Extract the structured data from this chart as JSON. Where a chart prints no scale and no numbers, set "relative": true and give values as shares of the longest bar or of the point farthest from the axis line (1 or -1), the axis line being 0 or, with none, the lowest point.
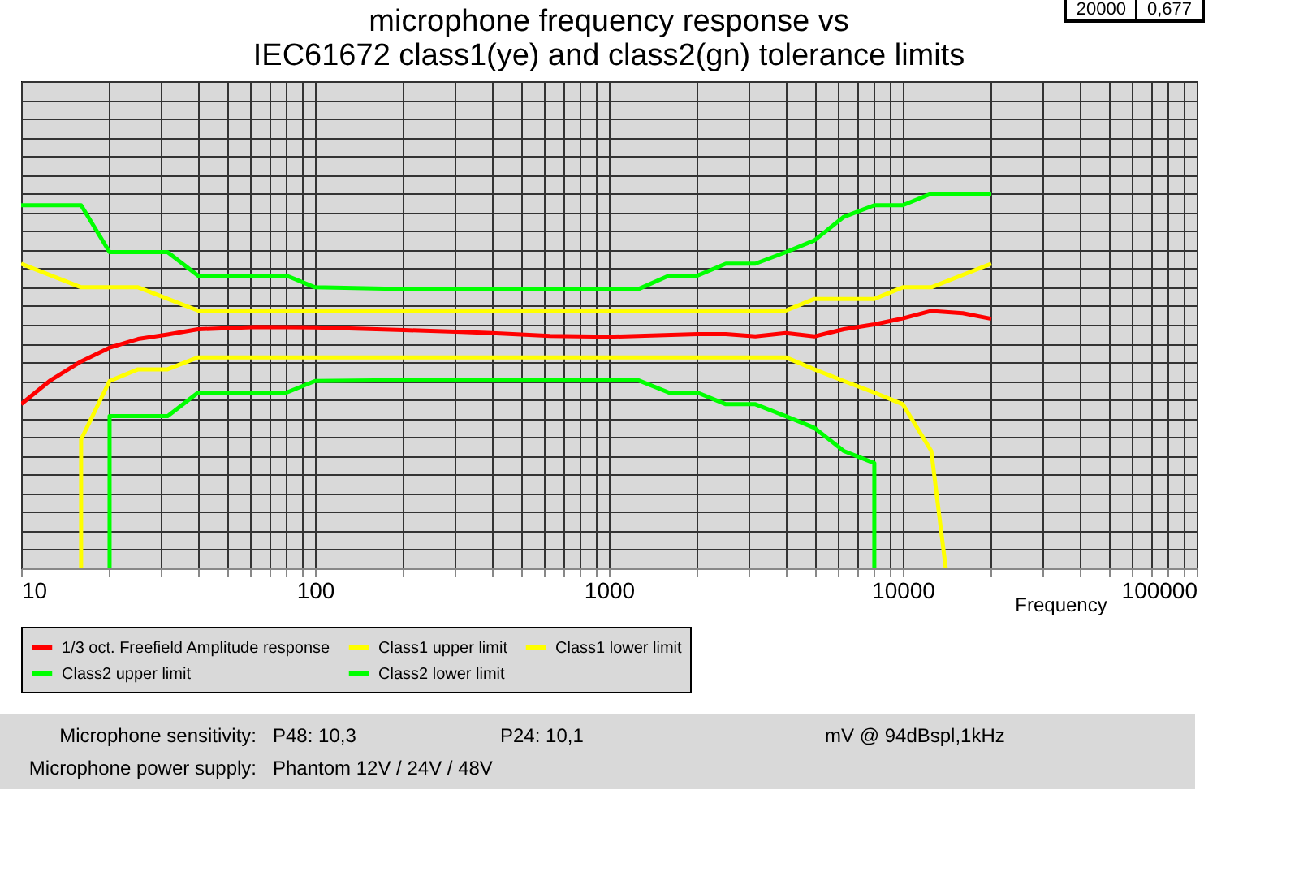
{
  "chart_data": {
    "type": "line",
    "title": "microphone frequency response vs\nIEC61672 class1(ye) and class2(gn) tolerance limits",
    "xlabel": "Frequency",
    "relative": true,
    "log": "x",
    "xlim": [
      10,
      100000
    ],
    "xticks": [
      10,
      100,
      1000,
      10000,
      100000
    ],
    "grid": true,
    "legend": "bottom",
    "line_style": "solid",
    "marker": "none",
    "series": [
      {
        "name": "1/3 oct. Freefield Amplitude response",
        "color": "#ff0000",
        "x": [
          10,
          12.5,
          16,
          20,
          25,
          31.5,
          40,
          63,
          100,
          200,
          315,
          400,
          630,
          1000,
          2000,
          2500,
          3150,
          4000,
          5000,
          6300,
          8000,
          10000,
          12500,
          16000,
          20000
        ],
        "values": [
          0.438,
          0.5,
          0.552,
          0.589,
          0.612,
          0.624,
          0.638,
          0.644,
          0.643,
          0.636,
          0.631,
          0.628,
          0.62,
          0.618,
          0.625,
          0.625,
          0.619,
          0.628,
          0.619,
          0.638,
          0.651,
          0.667,
          0.687,
          0.681,
          0.666
        ]
      },
      {
        "name": "Class1 upper limit",
        "color": "#ffff00",
        "x": [
          10,
          16,
          25,
          40,
          4000,
          5000,
          8000,
          10000,
          12500,
          20000
        ],
        "values": [
          0.813,
          0.75,
          0.75,
          0.688,
          0.688,
          0.719,
          0.719,
          0.75,
          0.75,
          0.813
        ]
      },
      {
        "name": "Class1 lower limit",
        "color": "#ffff00",
        "x": [
          16,
          16,
          20,
          25,
          31.5,
          40,
          4000,
          5000,
          6300,
          8000,
          10000,
          12500,
          14000
        ],
        "values": [
          0,
          0.344,
          0.5,
          0.531,
          0.531,
          0.563,
          0.563,
          0.531,
          0.5,
          0.469,
          0.438,
          0.313,
          0
        ]
      },
      {
        "name": "Class2 upper limit",
        "color": "#00ff00",
        "x": [
          10,
          16,
          20,
          31.5,
          40,
          80,
          100,
          250,
          1250,
          1600,
          2000,
          2500,
          3150,
          4000,
          5000,
          6300,
          8000,
          10000,
          12500,
          20000
        ],
        "values": [
          0.969,
          0.969,
          0.844,
          0.844,
          0.781,
          0.781,
          0.75,
          0.744,
          0.744,
          0.781,
          0.781,
          0.813,
          0.813,
          0.844,
          0.875,
          0.938,
          0.969,
          0.969,
          1,
          1
        ]
      },
      {
        "name": "Class2 lower limit",
        "color": "#00ff00",
        "x": [
          20,
          20,
          31.5,
          40,
          80,
          100,
          250,
          1250,
          1600,
          2000,
          2500,
          3150,
          4000,
          5000,
          6300,
          8000,
          8000
        ],
        "values": [
          0,
          0.406,
          0.406,
          0.469,
          0.469,
          0.5,
          0.503,
          0.503,
          0.469,
          0.469,
          0.438,
          0.438,
          0.406,
          0.375,
          0.313,
          0.281,
          0
        ]
      }
    ],
    "annotations": [
      "20000",
      "0,677",
      "Microphone sensitivity:",
      "P48: 10,3",
      "P24: 10,1",
      "mV @ 94dBspl,1kHz",
      "Microphone  power supply:",
      "Phantom 12V / 24V / 48V"
    ]
  }
}
